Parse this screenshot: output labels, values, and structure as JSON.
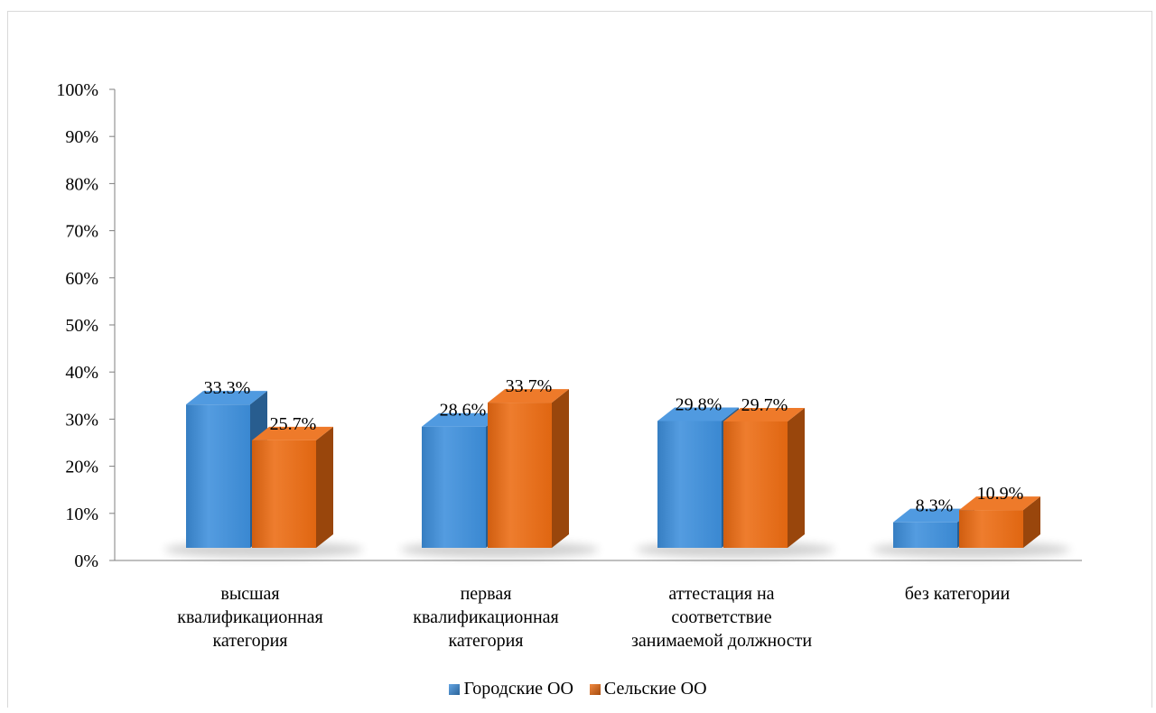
{
  "chart_data": {
    "type": "bar",
    "title": "",
    "xlabel": "",
    "ylabel": "",
    "ylim": [
      0,
      100
    ],
    "y_ticks": [
      "0%",
      "10%",
      "20%",
      "30%",
      "40%",
      "50%",
      "60%",
      "70%",
      "80%",
      "90%",
      "100%"
    ],
    "categories": [
      [
        "высшая",
        "квалификационная",
        "категория"
      ],
      [
        "первая",
        "квалификационная",
        "категория"
      ],
      [
        "аттестация на",
        "соответствие",
        "занимаемой должности"
      ],
      [
        "без категории"
      ]
    ],
    "series": [
      {
        "name": "Городские ОО",
        "values": [
          33.3,
          28.6,
          29.8,
          8.3
        ],
        "labels": [
          "33.3%",
          "28.6%",
          "29.8%",
          "8.3%"
        ],
        "color": "#3d8fdc"
      },
      {
        "name": "Сельские ОО",
        "values": [
          25.7,
          33.7,
          29.7,
          10.9
        ],
        "labels": [
          "25.7%",
          "33.7%",
          "29.7%",
          "10.9%"
        ],
        "color": "#ec6b12"
      }
    ],
    "grid": false,
    "legend_position": "bottom",
    "style": "3d-column"
  }
}
